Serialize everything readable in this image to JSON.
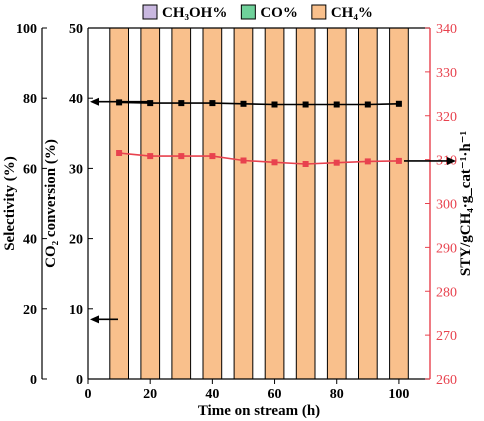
{
  "chart_data": {
    "type": "bar",
    "xlabel": "Time on stream (h)",
    "x_ticks": [
      0,
      20,
      40,
      60,
      80,
      100
    ],
    "xlim": [
      0,
      110
    ],
    "bar_x": [
      10,
      20,
      30,
      40,
      50,
      60,
      70,
      80,
      90,
      100
    ],
    "bar_width": 6,
    "axes": {
      "selectivity": {
        "label": "Selectivity (%)",
        "range": [
          0,
          100
        ],
        "ticks": [
          0,
          20,
          40,
          60,
          80,
          100
        ]
      },
      "co2_conversion": {
        "label": "CO₂ conversion (%)",
        "range": [
          0,
          50
        ],
        "ticks": [
          0,
          10,
          20,
          30,
          40,
          50
        ]
      },
      "sty": {
        "label": "STY/gCH₄·g_cat⁻¹·h⁻¹",
        "range": [
          260,
          340
        ],
        "ticks": [
          260,
          270,
          280,
          290,
          300,
          310,
          320,
          330,
          340
        ],
        "color": "#e8424e"
      }
    },
    "legend": {
      "placement": "top",
      "entries": [
        {
          "name": "CH₃OH%",
          "color": "#c9b8e0"
        },
        {
          "name": "CO%",
          "color": "#6fd19a"
        },
        {
          "name": "CH₄%",
          "color": "#f9c08c"
        }
      ]
    },
    "series": [
      {
        "name": "CH₄%",
        "kind": "bar",
        "axis": "selectivity",
        "color": "#f9c08c",
        "x": [
          10,
          20,
          30,
          40,
          50,
          60,
          70,
          80,
          90,
          100
        ],
        "values": [
          100,
          100,
          100,
          100,
          100,
          100,
          100,
          100,
          100,
          100
        ]
      },
      {
        "name": "CO₂ conversion",
        "kind": "line",
        "axis": "co2_conversion",
        "color": "#000000",
        "x": [
          10,
          20,
          30,
          40,
          50,
          60,
          70,
          80,
          90,
          100
        ],
        "values": [
          39.4,
          39.3,
          39.3,
          39.3,
          39.2,
          39.1,
          39.1,
          39.1,
          39.1,
          39.2
        ]
      },
      {
        "name": "STY",
        "kind": "line",
        "axis": "sty",
        "color": "#e8424e",
        "x": [
          10,
          20,
          30,
          40,
          50,
          60,
          70,
          80,
          90,
          100
        ],
        "values": [
          311.5,
          310.8,
          310.8,
          310.8,
          309.8,
          309.4,
          309.0,
          309.3,
          309.6,
          309.7
        ]
      }
    ],
    "annotations": [
      {
        "type": "arrow",
        "points_to": "selectivity",
        "direction": "left",
        "at_value": 79
      },
      {
        "type": "arrow",
        "points_to": "selectivity",
        "direction": "left",
        "at_value": 17
      },
      {
        "type": "arrow",
        "points_to": "sty",
        "direction": "right",
        "at_value": 309.7
      }
    ]
  }
}
